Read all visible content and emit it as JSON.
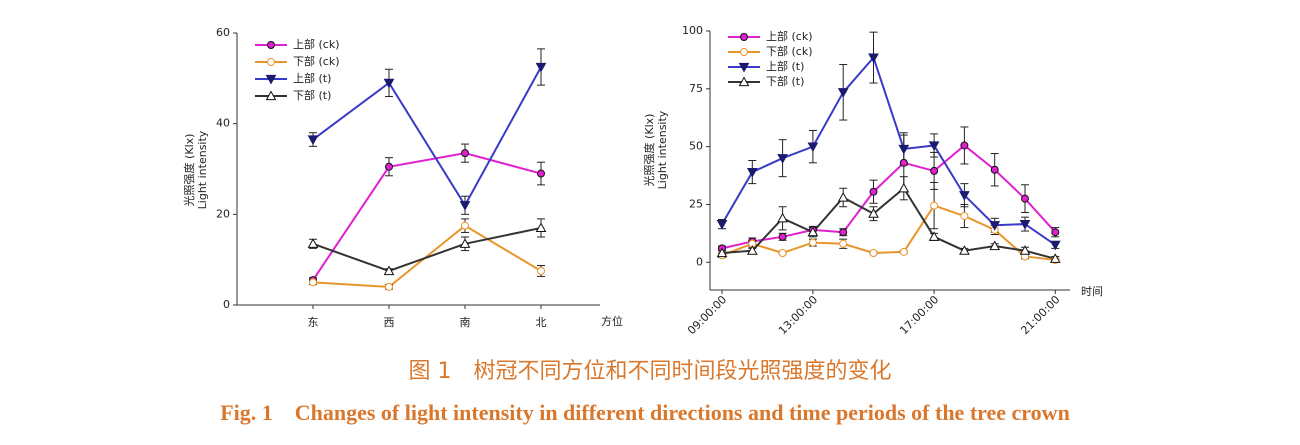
{
  "chart_data": [
    {
      "type": "line",
      "xlabel": "方位",
      "ylabel": [
        "光照强度 (Klx)",
        "Light intensity"
      ],
      "categories": [
        "东",
        "西",
        "南",
        "北"
      ],
      "ylim": [
        0,
        60
      ],
      "yticks": [
        0,
        20,
        40,
        60
      ],
      "series": [
        {
          "name": "上部 (ck)",
          "color": "#e020d0",
          "marker": "circle-filled",
          "values": [
            5.5,
            30.5,
            33.5,
            29
          ],
          "errors": [
            0.5,
            2,
            2,
            2.5
          ]
        },
        {
          "name": "下部 (ck)",
          "color": "#e8952a",
          "marker": "circle-open",
          "values": [
            5,
            4,
            17.5,
            7.5
          ],
          "errors": [
            0.5,
            0.5,
            1.5,
            1.2
          ]
        },
        {
          "name": "上部 (t)",
          "color": "#3a3ac8",
          "marker": "triangle-down-filled",
          "values": [
            36.5,
            49,
            22,
            52.5
          ],
          "errors": [
            1.5,
            3,
            2,
            4
          ]
        },
        {
          "name": "下部 (t)",
          "color": "#333333",
          "marker": "triangle-up-open",
          "values": [
            13.5,
            7.5,
            13.5,
            17
          ],
          "errors": [
            1,
            0.5,
            1.5,
            2
          ]
        }
      ]
    },
    {
      "type": "line",
      "xlabel": "时间",
      "ylabel": [
        "光照强度 (Klx)",
        "Light intensity"
      ],
      "categories": [
        "09:00:00",
        null,
        null,
        "13:00:00",
        null,
        null,
        null,
        "17:00:00",
        null,
        null,
        null,
        "21:00:00"
      ],
      "ylim": [
        -12,
        100
      ],
      "yticks": [
        0,
        25,
        50,
        75,
        100
      ],
      "series": [
        {
          "name": "上部 (ck)",
          "color": "#e020d0",
          "marker": "circle-filled",
          "values": [
            6,
            9,
            11,
            14,
            13,
            30.5,
            43,
            39.5,
            50.5,
            40,
            27.5,
            13
          ],
          "errors": [
            1,
            1.5,
            1.5,
            1.5,
            1.5,
            5,
            12,
            8,
            8,
            7,
            6,
            2
          ]
        },
        {
          "name": "下部 (ck)",
          "color": "#e8952a",
          "marker": "circle-open",
          "values": [
            3,
            8,
            4,
            8.5,
            8,
            4,
            4.5,
            24.5,
            20,
            14,
            2.5,
            1
          ],
          "errors": [
            1,
            1.5,
            0.5,
            1.5,
            2,
            0.5,
            0.5,
            10,
            5,
            2,
            1,
            0.5
          ]
        },
        {
          "name": "上部 (t)",
          "color": "#3a3ac8",
          "marker": "triangle-down-filled",
          "values": [
            16.5,
            39,
            45,
            50,
            73.5,
            88.5,
            49,
            50.5,
            29,
            16,
            16.5,
            7.5
          ],
          "errors": [
            2,
            5,
            8,
            7,
            12,
            11,
            7,
            5,
            5,
            3,
            3,
            1.5
          ]
        },
        {
          "name": "下部 (t)",
          "color": "#333333",
          "marker": "triangle-up-open",
          "values": [
            4,
            5,
            19,
            13,
            28,
            21,
            32,
            11,
            5,
            7,
            5,
            1.5
          ],
          "errors": [
            1,
            1,
            5,
            2,
            4,
            3,
            5,
            1.5,
            1,
            1,
            1.5,
            1
          ]
        }
      ]
    }
  ],
  "caption": {
    "zh": "图 1　树冠不同方位和不同时间段光照强度的变化",
    "en": "Fig. 1　Changes of light intensity in different directions and time periods of the tree crown"
  }
}
